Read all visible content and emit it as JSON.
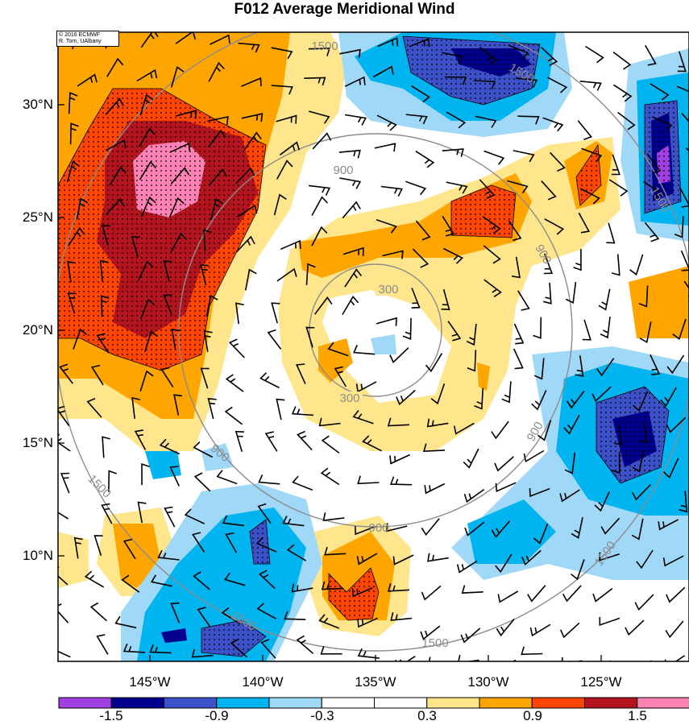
{
  "title": "F012 Average Meridional Wind",
  "credit": {
    "line1": "© 2016 ECMWF",
    "line2": "R. Torn, UAlbany"
  },
  "lat_labels": [
    "30°N",
    "25°N",
    "20°N",
    "15°N",
    "10°N"
  ],
  "lon_labels": [
    "145°W",
    "140°W",
    "135°W",
    "130°W",
    "125°W"
  ],
  "colorbar": {
    "labels": [
      "-1.5",
      "-0.9",
      "-0.3",
      "0.3",
      "0.9",
      "1.5"
    ],
    "colors": [
      "#a040e0",
      "#00008c",
      "#3c50c8",
      "#00b4f0",
      "#a0d8f8",
      "#ffffff",
      "#ffffff",
      "#ffe68c",
      "#ffa500",
      "#ff4500",
      "#b4141e",
      "#ff82b4"
    ]
  },
  "contour_labels": {
    "inner": "300",
    "middle": "900",
    "outer": "1500"
  },
  "map": {
    "lat_range": [
      5.5,
      33.5
    ],
    "lon_range": [
      -148.5,
      -120.5
    ],
    "storm_center": {
      "lat": 19.5,
      "lon": -134.5
    },
    "radii_km": [
      300,
      900,
      1500
    ]
  }
}
